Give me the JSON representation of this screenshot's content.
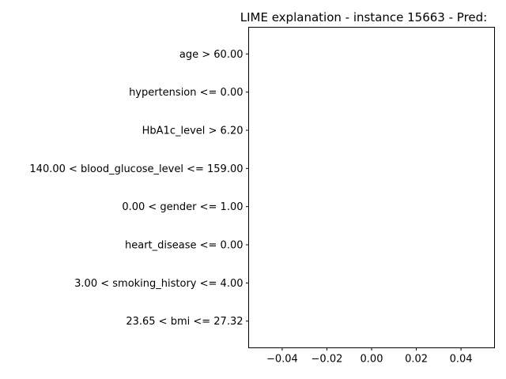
{
  "chart_data": {
    "type": "bar",
    "orientation": "horizontal",
    "title": "LIME explanation - instance 15663 - Pred:",
    "xlabel": "",
    "ylabel": "",
    "categories": [
      "23.65 < bmi <= 27.32",
      "3.00 < smoking_history <= 4.00",
      "heart_disease <= 0.00",
      "0.00 < gender <= 1.00",
      "140.00 < blood_glucose_level <= 159.00",
      "HbA1c_level > 6.20",
      "hypertension <= 0.00",
      "age > 60.00"
    ],
    "values": [
      0,
      0,
      0,
      0,
      0,
      0,
      0,
      0
    ],
    "xlim": [
      -0.055,
      0.055
    ],
    "xticks": [
      -0.04,
      -0.02,
      0.0,
      0.02,
      0.04
    ],
    "xtick_labels": [
      "−0.04",
      "−0.02",
      "0.00",
      "0.02",
      "0.04"
    ],
    "grid": false,
    "legend": "none"
  }
}
